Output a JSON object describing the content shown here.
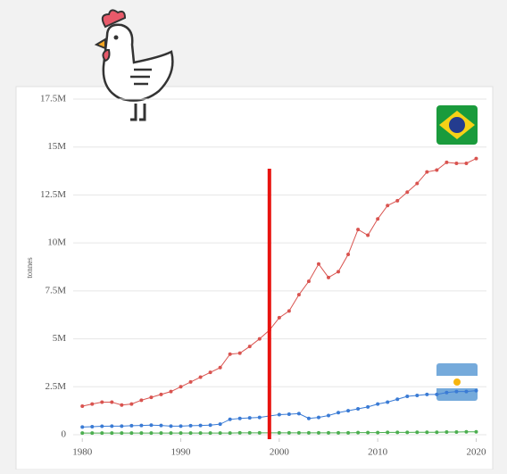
{
  "chart_data": {
    "type": "line",
    "y_label": "tonnes",
    "x": [
      1980,
      1981,
      1982,
      1983,
      1984,
      1985,
      1986,
      1987,
      1988,
      1989,
      1990,
      1991,
      1992,
      1993,
      1994,
      1995,
      1996,
      1997,
      1998,
      1999,
      2000,
      2001,
      2002,
      2003,
      2004,
      2005,
      2006,
      2007,
      2008,
      2009,
      2010,
      2011,
      2012,
      2013,
      2014,
      2015,
      2016,
      2017,
      2018,
      2019,
      2020
    ],
    "series": [
      {
        "color": "#d9534f",
        "values": [
          1490000,
          1600000,
          1700000,
          1700000,
          1550000,
          1600000,
          1800000,
          1950000,
          2100000,
          2250000,
          2500000,
          2750000,
          3000000,
          3250000,
          3500000,
          4200000,
          4250000,
          4600000,
          5000000,
          5450000,
          6100000,
          6450000,
          7300000,
          8000000,
          8900000,
          8200000,
          8500000,
          9400000,
          10700000,
          10400000,
          11250000,
          11950000,
          12200000,
          12650000,
          13100000,
          13700000,
          13800000,
          14200000,
          14150000,
          14150000,
          14400000
        ]
      },
      {
        "color": "#3a7bd5",
        "values": [
          400000,
          420000,
          440000,
          450000,
          450000,
          470000,
          480000,
          500000,
          480000,
          450000,
          450000,
          470000,
          480000,
          500000,
          550000,
          800000,
          850000,
          880000,
          900000,
          980000,
          1050000,
          1070000,
          1100000,
          850000,
          900000,
          1000000,
          1150000,
          1250000,
          1350000,
          1450000,
          1600000,
          1700000,
          1850000,
          2000000,
          2050000,
          2100000,
          2100000,
          2200000,
          2250000,
          2250000,
          2300000
        ]
      },
      {
        "color": "#4caf50",
        "values": [
          90000,
          90000,
          90000,
          90000,
          90000,
          90000,
          90000,
          90000,
          90000,
          90000,
          90000,
          90000,
          90000,
          90000,
          90000,
          90000,
          100000,
          100000,
          100000,
          100000,
          100000,
          100000,
          100000,
          100000,
          100000,
          100000,
          100000,
          100000,
          110000,
          110000,
          110000,
          120000,
          120000,
          120000,
          130000,
          130000,
          130000,
          140000,
          140000,
          150000,
          150000
        ]
      }
    ],
    "xlim": [
      1979.8,
      2020.5
    ],
    "xticks": [
      1980,
      1990,
      2000,
      2010,
      2020
    ],
    "ylim": [
      0,
      17500000
    ],
    "yticks": [
      0,
      {
        "value": 2500000,
        "label": "2.5M"
      },
      {
        "value": 5000000,
        "label": "5M"
      },
      {
        "value": 7500000,
        "label": "7.5M"
      },
      {
        "value": 10000000,
        "label": "10M"
      },
      {
        "value": 12500000,
        "label": "12.5M"
      },
      {
        "value": 15000000,
        "label": "15M"
      },
      {
        "value": 17500000,
        "label": "17.5M"
      }
    ],
    "grid": true,
    "marker_line": {
      "x": 1999,
      "color": "#e8130f"
    }
  }
}
